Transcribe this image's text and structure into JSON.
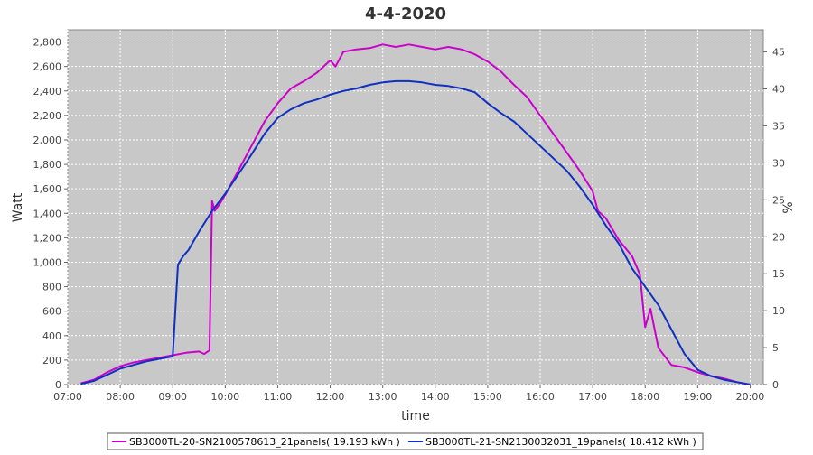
{
  "chart_data": {
    "type": "line",
    "title": "4-4-2020",
    "xlabel": "time",
    "ylabel": "Watt",
    "y2label": "%",
    "xlim": [
      7.0,
      20.25
    ],
    "ylim": [
      0,
      2900
    ],
    "y2lim": [
      0,
      48
    ],
    "x_ticks": [
      "07:00",
      "08:00",
      "09:00",
      "10:00",
      "11:00",
      "12:00",
      "13:00",
      "14:00",
      "15:00",
      "16:00",
      "17:00",
      "18:00",
      "19:00",
      "20:00"
    ],
    "y_ticks": [
      "0",
      "200",
      "400",
      "600",
      "800",
      "1,000",
      "1,200",
      "1,400",
      "1,600",
      "1,800",
      "2,000",
      "2,200",
      "2,400",
      "2,600",
      "2,800"
    ],
    "y2_ticks": [
      "0",
      "5",
      "10",
      "15",
      "20",
      "25",
      "30",
      "35",
      "40",
      "45"
    ],
    "plot_background": "#c8c8c8",
    "grid": true,
    "legend_position": "bottom",
    "series": [
      {
        "name": "SB3000TL-20-SN2100578613_21panels( 19.193 kWh )",
        "color": "#cc00cc",
        "x": [
          7.25,
          7.5,
          7.75,
          8.0,
          8.25,
          8.5,
          8.75,
          9.0,
          9.25,
          9.5,
          9.6,
          9.7,
          9.75,
          9.8,
          9.9,
          10.0,
          10.25,
          10.5,
          10.75,
          11.0,
          11.25,
          11.5,
          11.75,
          12.0,
          12.1,
          12.25,
          12.5,
          12.75,
          13.0,
          13.25,
          13.5,
          13.75,
          14.0,
          14.25,
          14.5,
          14.75,
          15.0,
          15.25,
          15.5,
          15.75,
          16.0,
          16.25,
          16.5,
          16.75,
          17.0,
          17.1,
          17.25,
          17.5,
          17.75,
          17.9,
          18.0,
          18.1,
          18.25,
          18.5,
          18.75,
          19.0,
          19.25,
          19.5,
          19.75,
          20.0
        ],
        "y": [
          10,
          40,
          100,
          150,
          180,
          200,
          220,
          240,
          260,
          270,
          250,
          280,
          1500,
          1420,
          1480,
          1550,
          1750,
          1950,
          2150,
          2300,
          2420,
          2480,
          2550,
          2650,
          2600,
          2720,
          2740,
          2750,
          2780,
          2760,
          2780,
          2760,
          2740,
          2760,
          2740,
          2700,
          2640,
          2560,
          2450,
          2350,
          2200,
          2050,
          1900,
          1750,
          1580,
          1420,
          1360,
          1180,
          1050,
          900,
          470,
          620,
          300,
          160,
          140,
          100,
          70,
          50,
          20,
          0
        ]
      },
      {
        "name": "SB3000TL-21-SN2130032031_19panels( 18.412 kWh )",
        "color": "#1030c0",
        "x": [
          7.25,
          7.5,
          7.75,
          8.0,
          8.25,
          8.5,
          8.75,
          9.0,
          9.1,
          9.2,
          9.3,
          9.5,
          9.75,
          10.0,
          10.25,
          10.5,
          10.75,
          11.0,
          11.25,
          11.5,
          11.75,
          12.0,
          12.25,
          12.5,
          12.75,
          13.0,
          13.25,
          13.5,
          13.75,
          14.0,
          14.25,
          14.5,
          14.75,
          15.0,
          15.25,
          15.5,
          15.75,
          16.0,
          16.25,
          16.5,
          16.75,
          17.0,
          17.25,
          17.5,
          17.75,
          18.0,
          18.25,
          18.5,
          18.75,
          19.0,
          19.25,
          19.5,
          19.75,
          20.0
        ],
        "y": [
          5,
          30,
          80,
          130,
          160,
          190,
          210,
          230,
          980,
          1050,
          1100,
          1250,
          1420,
          1560,
          1720,
          1880,
          2050,
          2180,
          2250,
          2300,
          2330,
          2370,
          2400,
          2420,
          2450,
          2470,
          2480,
          2480,
          2470,
          2450,
          2440,
          2420,
          2390,
          2300,
          2220,
          2150,
          2050,
          1950,
          1850,
          1750,
          1620,
          1470,
          1300,
          1150,
          950,
          800,
          650,
          450,
          250,
          120,
          70,
          40,
          20,
          0
        ]
      }
    ]
  }
}
